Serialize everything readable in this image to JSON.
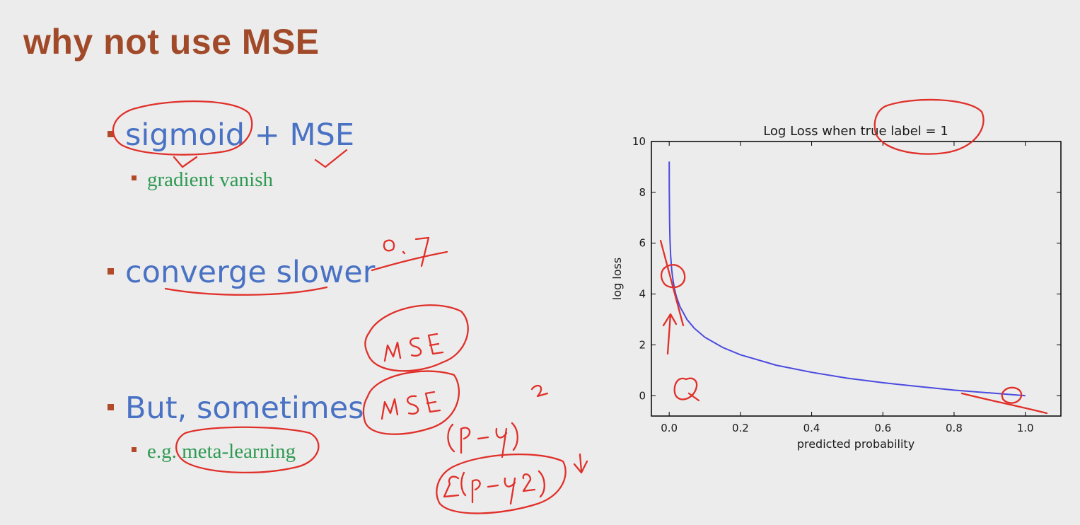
{
  "slide": {
    "title": "why not use MSE",
    "title_color": "#a14a2a",
    "bullet_color": "#4a72c4",
    "sub_color": "#2f9a52",
    "bullets": [
      {
        "text": "sigmoid + MSE",
        "sub": "gradient vanish"
      },
      {
        "text": "converge slower",
        "sub": ""
      },
      {
        "text": "But, sometimes",
        "sub": "e.g. meta-learning"
      }
    ]
  },
  "annotations": {
    "ink_color": "#e0302a",
    "notes": [
      "0.7",
      "MSE",
      "MSE",
      "(p-y)²",
      "2(p-y)",
      "Q"
    ]
  },
  "chart_data": {
    "type": "line",
    "title": "Log Loss when true label = 1",
    "xlabel": "predicted probability",
    "ylabel": "log loss",
    "xlim": [
      -0.05,
      1.1
    ],
    "ylim": [
      -0.8,
      10
    ],
    "xticks": [
      "0.0",
      "0.2",
      "0.4",
      "0.6",
      "0.8",
      "1.0"
    ],
    "yticks": [
      "0",
      "2",
      "4",
      "6",
      "8",
      "10"
    ],
    "grid": false,
    "line_color": "#4a4ae0",
    "series": [
      {
        "x": [
          0.0001,
          0.0003,
          0.001,
          0.002,
          0.004,
          0.007,
          0.01,
          0.015,
          0.02,
          0.03,
          0.05,
          0.07,
          0.1,
          0.15,
          0.2,
          0.3,
          0.4,
          0.5,
          0.6,
          0.7,
          0.8,
          0.9,
          1.0
        ],
        "y": [
          9.21,
          8.11,
          6.91,
          6.21,
          5.52,
          4.96,
          4.61,
          4.2,
          3.91,
          3.51,
          3.0,
          2.66,
          2.3,
          1.9,
          1.61,
          1.2,
          0.92,
          0.69,
          0.51,
          0.36,
          0.22,
          0.11,
          0.0
        ]
      }
    ]
  }
}
